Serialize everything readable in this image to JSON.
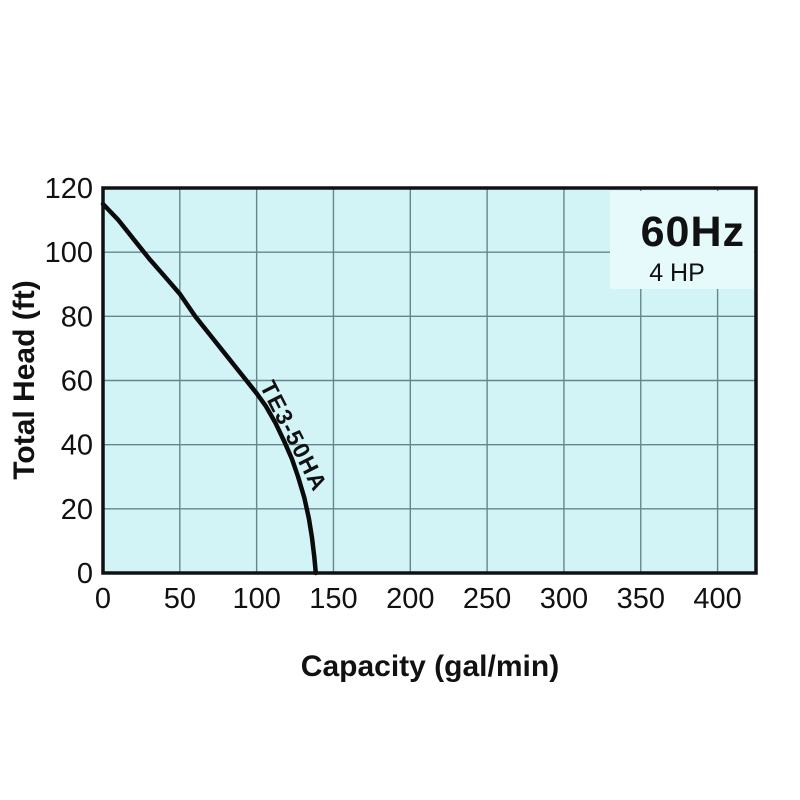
{
  "page": {
    "background_color": "#ffffff"
  },
  "annotations": {
    "frequency": "60Hz",
    "power": "4 HP"
  },
  "chart_data": {
    "type": "line",
    "title": "",
    "xlabel": "Capacity (gal/min)",
    "ylabel": "Total Head (ft)",
    "xlim": [
      0,
      425
    ],
    "ylim": [
      0,
      120
    ],
    "x_ticks": [
      0,
      50,
      100,
      150,
      200,
      250,
      300,
      350,
      400
    ],
    "y_ticks": [
      0,
      20,
      40,
      60,
      80,
      100,
      120
    ],
    "grid": true,
    "legend_position": "none",
    "colors": {
      "plot_bg": "#d2f4f7",
      "grid": "#64868d",
      "curve": "#0b0b0b",
      "border": "#111111",
      "annotation_bg": "#e6fafb",
      "text": "#111111"
    },
    "series": [
      {
        "name": "TE3-50HA",
        "x": [
          0,
          10,
          20,
          30,
          40,
          50,
          60,
          70,
          80,
          90,
          100,
          106,
          112,
          118,
          123,
          127,
          131,
          134,
          136,
          137.5,
          138.5
        ],
        "y": [
          115,
          110,
          104,
          98,
          92.5,
          87,
          80,
          74,
          68,
          62,
          56,
          52,
          47,
          41,
          35.5,
          30,
          23.5,
          17,
          11,
          5,
          0
        ]
      }
    ]
  }
}
